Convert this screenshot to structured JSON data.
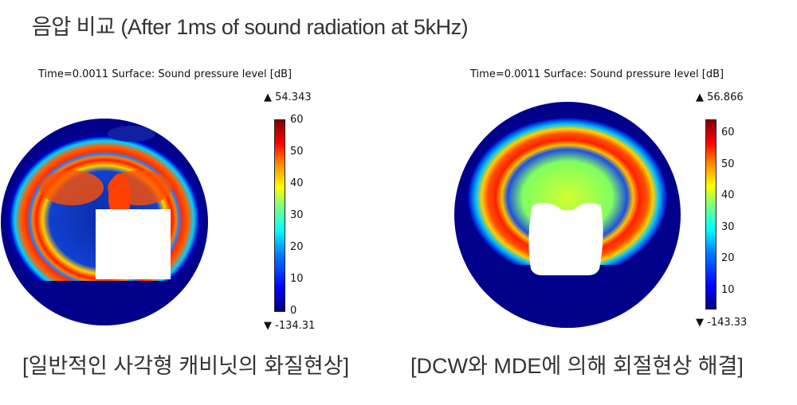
{
  "title": "음압 비교 (After 1ms of sound radiation at 5kHz)",
  "plots": [
    {
      "header": "Time=0.0011   Surface: Sound pressure level [dB]",
      "max": "▲ 54.343",
      "min": "▼ -134.31",
      "ticks": [
        "60",
        "50",
        "40",
        "30",
        "20",
        "10",
        "0"
      ],
      "caption": "[일반적인 사각형 캐비닛의 화질현상]"
    },
    {
      "header": "Time=0.0011   Surface: Sound pressure level [dB]",
      "max": "▲ 56.866",
      "min": "▼ -143.33",
      "ticks": [
        "60",
        "50",
        "40",
        "30",
        "20",
        "10"
      ],
      "caption": "[DCW와 MDE에 의해 회절현상 해결]"
    }
  ]
}
